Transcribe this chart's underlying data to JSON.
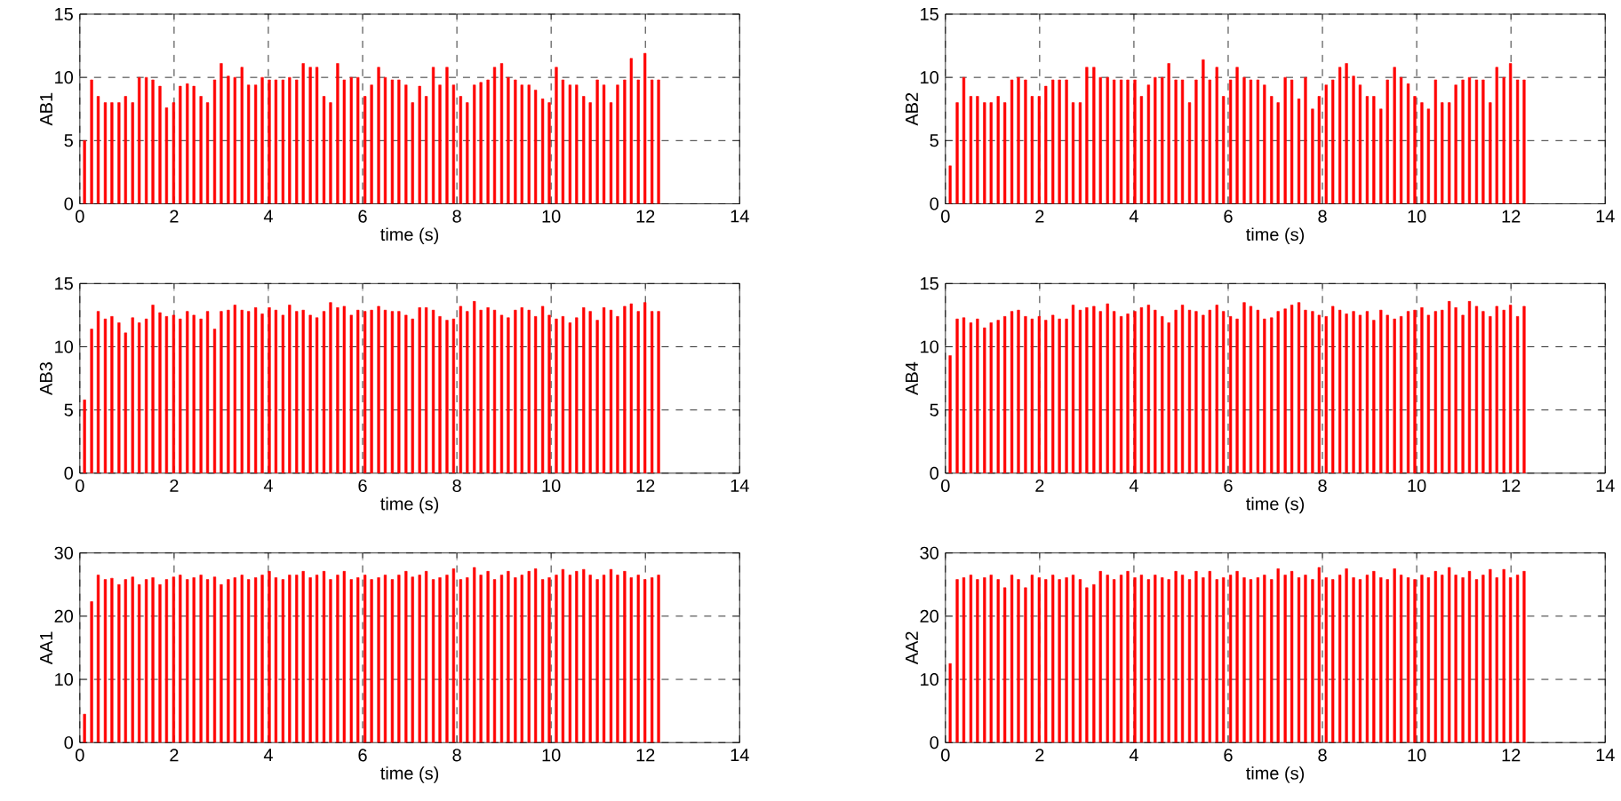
{
  "chart_data": [
    {
      "type": "bar",
      "ylabel": "AB1",
      "xlabel": "time (s)",
      "color": "#ff0000",
      "grid": true,
      "xlim": [
        0,
        14
      ],
      "ylim": [
        0,
        15
      ],
      "xticks": [
        0,
        2,
        4,
        6,
        8,
        10,
        12,
        14
      ],
      "yticks": [
        0,
        5,
        10,
        15
      ],
      "x": [
        0.1,
        0.25,
        0.39,
        0.54,
        0.68,
        0.83,
        0.97,
        1.12,
        1.26,
        1.41,
        1.55,
        1.7,
        1.84,
        1.99,
        2.13,
        2.28,
        2.42,
        2.57,
        2.71,
        2.86,
        3.0,
        3.15,
        3.29,
        3.44,
        3.58,
        3.73,
        3.87,
        4.02,
        4.16,
        4.31,
        4.45,
        4.6,
        4.74,
        4.89,
        5.03,
        5.18,
        5.32,
        5.47,
        5.61,
        5.76,
        5.9,
        6.05,
        6.19,
        6.34,
        6.48,
        6.63,
        6.77,
        6.92,
        7.06,
        7.21,
        7.35,
        7.5,
        7.64,
        7.79,
        7.93,
        8.08,
        8.22,
        8.37,
        8.51,
        8.66,
        8.8,
        8.95,
        9.09,
        9.24,
        9.38,
        9.53,
        9.67,
        9.82,
        9.96,
        10.11,
        10.25,
        10.4,
        10.54,
        10.69,
        10.83,
        10.98,
        11.12,
        11.27,
        11.41,
        11.56,
        11.7,
        11.85,
        11.99,
        12.14,
        12.28
      ],
      "values": [
        5,
        9.8,
        8.5,
        8,
        8,
        8,
        8.5,
        8,
        10,
        10,
        9.8,
        9.3,
        7.6,
        8,
        9.3,
        9.5,
        9.3,
        8.5,
        8,
        9.8,
        11.1,
        10.1,
        10,
        10.8,
        9.4,
        9.4,
        10,
        9.8,
        9.8,
        9.8,
        10,
        9.8,
        11.1,
        10.8,
        10.8,
        8.5,
        8,
        11.1,
        9.8,
        10,
        10,
        8.5,
        9.4,
        10.8,
        10,
        9.8,
        9.8,
        9.4,
        8,
        9.3,
        8.5,
        10.8,
        9.4,
        10.8,
        9.4,
        8.5,
        8,
        9.4,
        9.6,
        9.8,
        10.8,
        11.1,
        10,
        9.8,
        9.4,
        9.4,
        9,
        8.3,
        8,
        10.8,
        9.8,
        9.4,
        9.4,
        8.5,
        8,
        9.8,
        9.4,
        8,
        9.4,
        9.8,
        11.5,
        9.8,
        11.9,
        9.8,
        9.8
      ]
    },
    {
      "type": "bar",
      "ylabel": "AB2",
      "xlabel": "time (s)",
      "color": "#ff0000",
      "grid": true,
      "xlim": [
        0,
        14
      ],
      "ylim": [
        0,
        15
      ],
      "xticks": [
        0,
        2,
        4,
        6,
        8,
        10,
        12,
        14
      ],
      "yticks": [
        0,
        5,
        10,
        15
      ],
      "x": [
        0.1,
        0.25,
        0.39,
        0.54,
        0.68,
        0.83,
        0.97,
        1.12,
        1.26,
        1.41,
        1.55,
        1.7,
        1.84,
        1.99,
        2.13,
        2.28,
        2.42,
        2.57,
        2.71,
        2.86,
        3.0,
        3.15,
        3.29,
        3.44,
        3.58,
        3.73,
        3.87,
        4.02,
        4.16,
        4.31,
        4.45,
        4.6,
        4.74,
        4.89,
        5.03,
        5.18,
        5.32,
        5.47,
        5.61,
        5.76,
        5.9,
        6.05,
        6.19,
        6.34,
        6.48,
        6.63,
        6.77,
        6.92,
        7.06,
        7.21,
        7.35,
        7.5,
        7.64,
        7.79,
        7.93,
        8.08,
        8.22,
        8.37,
        8.51,
        8.66,
        8.8,
        8.95,
        9.09,
        9.24,
        9.38,
        9.53,
        9.67,
        9.82,
        9.96,
        10.11,
        10.25,
        10.4,
        10.54,
        10.69,
        10.83,
        10.98,
        11.12,
        11.27,
        11.41,
        11.56,
        11.7,
        11.85,
        11.99,
        12.14,
        12.28
      ],
      "values": [
        3,
        8,
        10,
        8.5,
        8.5,
        8,
        8,
        8.5,
        8,
        9.8,
        10,
        9.8,
        8.5,
        8.5,
        9.3,
        9.8,
        9.8,
        9.8,
        8,
        8,
        10.8,
        10.8,
        10,
        10,
        9.8,
        9.8,
        9.8,
        9.8,
        8.5,
        9.4,
        10,
        10,
        11.1,
        9.8,
        9.8,
        8,
        9.8,
        11.4,
        9.8,
        10.8,
        8.5,
        9.8,
        10.8,
        10,
        9.8,
        9.8,
        9.4,
        8.5,
        8,
        10,
        9.8,
        8.3,
        10,
        7.5,
        8.5,
        9.4,
        9.8,
        10.8,
        11.1,
        10.1,
        9.4,
        8.5,
        8.5,
        7.5,
        9.8,
        10.8,
        10,
        9.5,
        8.5,
        8,
        7.5,
        9.8,
        8,
        8,
        9.4,
        9.8,
        10,
        9.8,
        9.8,
        8,
        10.8,
        10,
        11.1,
        9.8,
        9.8
      ]
    },
    {
      "type": "bar",
      "ylabel": "AB3",
      "xlabel": "time (s)",
      "color": "#ff0000",
      "grid": true,
      "xlim": [
        0,
        14
      ],
      "ylim": [
        0,
        15
      ],
      "xticks": [
        0,
        2,
        4,
        6,
        8,
        10,
        12,
        14
      ],
      "yticks": [
        0,
        5,
        10,
        15
      ],
      "x": [
        0.1,
        0.25,
        0.39,
        0.54,
        0.68,
        0.83,
        0.97,
        1.12,
        1.26,
        1.41,
        1.55,
        1.7,
        1.84,
        1.99,
        2.13,
        2.28,
        2.42,
        2.57,
        2.71,
        2.86,
        3.0,
        3.15,
        3.29,
        3.44,
        3.58,
        3.73,
        3.87,
        4.02,
        4.16,
        4.31,
        4.45,
        4.6,
        4.74,
        4.89,
        5.03,
        5.18,
        5.32,
        5.47,
        5.61,
        5.76,
        5.9,
        6.05,
        6.19,
        6.34,
        6.48,
        6.63,
        6.77,
        6.92,
        7.06,
        7.21,
        7.35,
        7.5,
        7.64,
        7.79,
        7.93,
        8.08,
        8.22,
        8.37,
        8.51,
        8.66,
        8.8,
        8.95,
        9.09,
        9.24,
        9.38,
        9.53,
        9.67,
        9.82,
        9.96,
        10.11,
        10.25,
        10.4,
        10.54,
        10.69,
        10.83,
        10.98,
        11.12,
        11.27,
        11.41,
        11.56,
        11.7,
        11.85,
        11.99,
        12.14,
        12.28
      ],
      "values": [
        5.8,
        11.4,
        12.8,
        12.2,
        12.4,
        11.9,
        11.1,
        12.3,
        11.9,
        12.2,
        13.3,
        12.7,
        12.4,
        12.5,
        12.2,
        12.8,
        12.5,
        12.2,
        12.8,
        11.4,
        12.8,
        12.9,
        13.3,
        12.9,
        12.8,
        13.1,
        12.6,
        13.1,
        12.9,
        12.5,
        13.3,
        12.8,
        12.9,
        12.5,
        12.3,
        12.8,
        13.5,
        13.1,
        13.2,
        12.5,
        12.9,
        12.8,
        12.9,
        13.2,
        12.9,
        12.8,
        12.8,
        12.5,
        12.2,
        13.1,
        13.1,
        12.9,
        12.4,
        12.1,
        12.2,
        13.2,
        12.8,
        13.6,
        12.9,
        13.1,
        12.9,
        12.5,
        12.3,
        12.9,
        13.1,
        12.9,
        12.4,
        13.2,
        12.5,
        12.2,
        12.4,
        11.9,
        12.3,
        13.1,
        12.8,
        12.1,
        13.1,
        12.9,
        12.4,
        13.2,
        13.4,
        12.8,
        13.5,
        12.8,
        12.8
      ]
    },
    {
      "type": "bar",
      "ylabel": "AB4",
      "xlabel": "time (s)",
      "color": "#ff0000",
      "grid": true,
      "xlim": [
        0,
        14
      ],
      "ylim": [
        0,
        15
      ],
      "xticks": [
        0,
        2,
        4,
        6,
        8,
        10,
        12,
        14
      ],
      "yticks": [
        0,
        5,
        10,
        15
      ],
      "x": [
        0.1,
        0.25,
        0.39,
        0.54,
        0.68,
        0.83,
        0.97,
        1.12,
        1.26,
        1.41,
        1.55,
        1.7,
        1.84,
        1.99,
        2.13,
        2.28,
        2.42,
        2.57,
        2.71,
        2.86,
        3.0,
        3.15,
        3.29,
        3.44,
        3.58,
        3.73,
        3.87,
        4.02,
        4.16,
        4.31,
        4.45,
        4.6,
        4.74,
        4.89,
        5.03,
        5.18,
        5.32,
        5.47,
        5.61,
        5.76,
        5.9,
        6.05,
        6.19,
        6.34,
        6.48,
        6.63,
        6.77,
        6.92,
        7.06,
        7.21,
        7.35,
        7.5,
        7.64,
        7.79,
        7.93,
        8.08,
        8.22,
        8.37,
        8.51,
        8.66,
        8.8,
        8.95,
        9.09,
        9.24,
        9.38,
        9.53,
        9.67,
        9.82,
        9.96,
        10.11,
        10.25,
        10.4,
        10.54,
        10.69,
        10.83,
        10.98,
        11.12,
        11.27,
        11.41,
        11.56,
        11.7,
        11.85,
        11.99,
        12.14,
        12.28
      ],
      "values": [
        9.3,
        12.2,
        12.3,
        11.9,
        12.2,
        11.5,
        11.9,
        12.1,
        12.4,
        12.8,
        12.9,
        12.4,
        12.2,
        12.4,
        12.1,
        12.5,
        12.2,
        12.2,
        13.3,
        12.9,
        13.1,
        13.2,
        12.8,
        13.4,
        12.8,
        12.4,
        12.6,
        12.8,
        13.1,
        13.3,
        12.9,
        12.4,
        11.9,
        12.9,
        13.3,
        12.9,
        12.8,
        12.5,
        12.9,
        13.3,
        12.8,
        12.4,
        12.2,
        13.5,
        13.2,
        12.9,
        12.2,
        12.3,
        12.8,
        13.0,
        13.3,
        13.5,
        12.9,
        12.8,
        12.5,
        12.4,
        13.2,
        12.9,
        12.6,
        12.8,
        12.5,
        12.8,
        12.1,
        12.9,
        12.5,
        12.2,
        12.4,
        12.8,
        12.9,
        13.1,
        12.5,
        12.8,
        12.9,
        13.6,
        13.1,
        12.5,
        13.6,
        13.2,
        12.8,
        12.4,
        13.2,
        12.9,
        13.3,
        12.4,
        13.2
      ]
    },
    {
      "type": "bar",
      "ylabel": "AA1",
      "xlabel": "time (s)",
      "color": "#ff0000",
      "grid": true,
      "xlim": [
        0,
        14
      ],
      "ylim": [
        0,
        30
      ],
      "xticks": [
        0,
        2,
        4,
        6,
        8,
        10,
        12,
        14
      ],
      "yticks": [
        0,
        10,
        20,
        30
      ],
      "x": [
        0.1,
        0.25,
        0.39,
        0.54,
        0.68,
        0.83,
        0.97,
        1.12,
        1.26,
        1.41,
        1.55,
        1.7,
        1.84,
        1.99,
        2.13,
        2.28,
        2.42,
        2.57,
        2.71,
        2.86,
        3.0,
        3.15,
        3.29,
        3.44,
        3.58,
        3.73,
        3.87,
        4.02,
        4.16,
        4.31,
        4.45,
        4.6,
        4.74,
        4.89,
        5.03,
        5.18,
        5.32,
        5.47,
        5.61,
        5.76,
        5.9,
        6.05,
        6.19,
        6.34,
        6.48,
        6.63,
        6.77,
        6.92,
        7.06,
        7.21,
        7.35,
        7.5,
        7.64,
        7.79,
        7.93,
        8.08,
        8.22,
        8.37,
        8.51,
        8.66,
        8.8,
        8.95,
        9.09,
        9.24,
        9.38,
        9.53,
        9.67,
        9.82,
        9.96,
        10.11,
        10.25,
        10.4,
        10.54,
        10.69,
        10.83,
        10.98,
        11.12,
        11.27,
        11.41,
        11.56,
        11.7,
        11.85,
        11.99,
        12.14,
        12.28
      ],
      "values": [
        4.5,
        22.3,
        26.5,
        25.8,
        26,
        25,
        25.8,
        26.2,
        25,
        25.8,
        26.1,
        25,
        25.8,
        26.2,
        26.5,
        25.8,
        26.1,
        26.5,
        25.8,
        26.2,
        25,
        25.8,
        26.1,
        26.5,
        25.8,
        26.1,
        26.5,
        27.1,
        26.1,
        25.8,
        26.5,
        26.5,
        27.1,
        26.1,
        26.5,
        27.1,
        25.8,
        26.5,
        27.1,
        25.8,
        26.1,
        26.5,
        25.8,
        26.1,
        26.5,
        25.8,
        26.5,
        27.1,
        26.2,
        26.5,
        27.1,
        25.8,
        26.1,
        26.5,
        27.5,
        25.8,
        26.1,
        27.7,
        26.5,
        27.1,
        25.8,
        26.5,
        27.1,
        26.1,
        26.5,
        27.1,
        27.5,
        25.8,
        26.1,
        26.5,
        27.4,
        26.5,
        27.1,
        27.4,
        26.5,
        25.8,
        26.5,
        27.4,
        26.5,
        27.1,
        26.1,
        26.5,
        25.8,
        26.1,
        26.5
      ]
    },
    {
      "type": "bar",
      "ylabel": "AA2",
      "xlabel": "time (s)",
      "color": "#ff0000",
      "grid": true,
      "xlim": [
        0,
        14
      ],
      "ylim": [
        0,
        30
      ],
      "xticks": [
        0,
        2,
        4,
        6,
        8,
        10,
        12,
        14
      ],
      "yticks": [
        0,
        10,
        20,
        30
      ],
      "x": [
        0.1,
        0.25,
        0.39,
        0.54,
        0.68,
        0.83,
        0.97,
        1.12,
        1.26,
        1.41,
        1.55,
        1.7,
        1.84,
        1.99,
        2.13,
        2.28,
        2.42,
        2.57,
        2.71,
        2.86,
        3.0,
        3.15,
        3.29,
        3.44,
        3.58,
        3.73,
        3.87,
        4.02,
        4.16,
        4.31,
        4.45,
        4.6,
        4.74,
        4.89,
        5.03,
        5.18,
        5.32,
        5.47,
        5.61,
        5.76,
        5.9,
        6.05,
        6.19,
        6.34,
        6.48,
        6.63,
        6.77,
        6.92,
        7.06,
        7.21,
        7.35,
        7.5,
        7.64,
        7.79,
        7.93,
        8.08,
        8.22,
        8.37,
        8.51,
        8.66,
        8.8,
        8.95,
        9.09,
        9.24,
        9.38,
        9.53,
        9.67,
        9.82,
        9.96,
        10.11,
        10.25,
        10.4,
        10.54,
        10.69,
        10.83,
        10.98,
        11.12,
        11.27,
        11.41,
        11.56,
        11.7,
        11.85,
        11.99,
        12.14,
        12.28
      ],
      "values": [
        12.5,
        25.8,
        26.1,
        26.5,
        25.8,
        26.1,
        26.5,
        25.8,
        24.5,
        26.5,
        25.8,
        24.5,
        26.5,
        26.1,
        25.8,
        26.5,
        25.8,
        26.1,
        26.5,
        25.8,
        24.5,
        25,
        27.1,
        26.5,
        25.8,
        26.5,
        27.1,
        26.1,
        26.5,
        25.8,
        26.5,
        26.1,
        25.8,
        27.1,
        26.5,
        25.8,
        27.1,
        26.1,
        27.1,
        25.8,
        26.1,
        26.5,
        27.1,
        26.1,
        25.8,
        26.1,
        26.5,
        25.8,
        27.5,
        26.5,
        27.1,
        26.1,
        26.5,
        25.8,
        27.7,
        26.1,
        25.8,
        26.5,
        27.5,
        26.1,
        25.8,
        26.5,
        27.1,
        26.1,
        25.8,
        27.5,
        26.5,
        26.1,
        25.8,
        26.5,
        26.1,
        27.1,
        26.5,
        27.7,
        26.5,
        26.1,
        27.1,
        25.8,
        26.5,
        27.4,
        26.1,
        27.4,
        26.1,
        26.5,
        27.1
      ]
    }
  ]
}
